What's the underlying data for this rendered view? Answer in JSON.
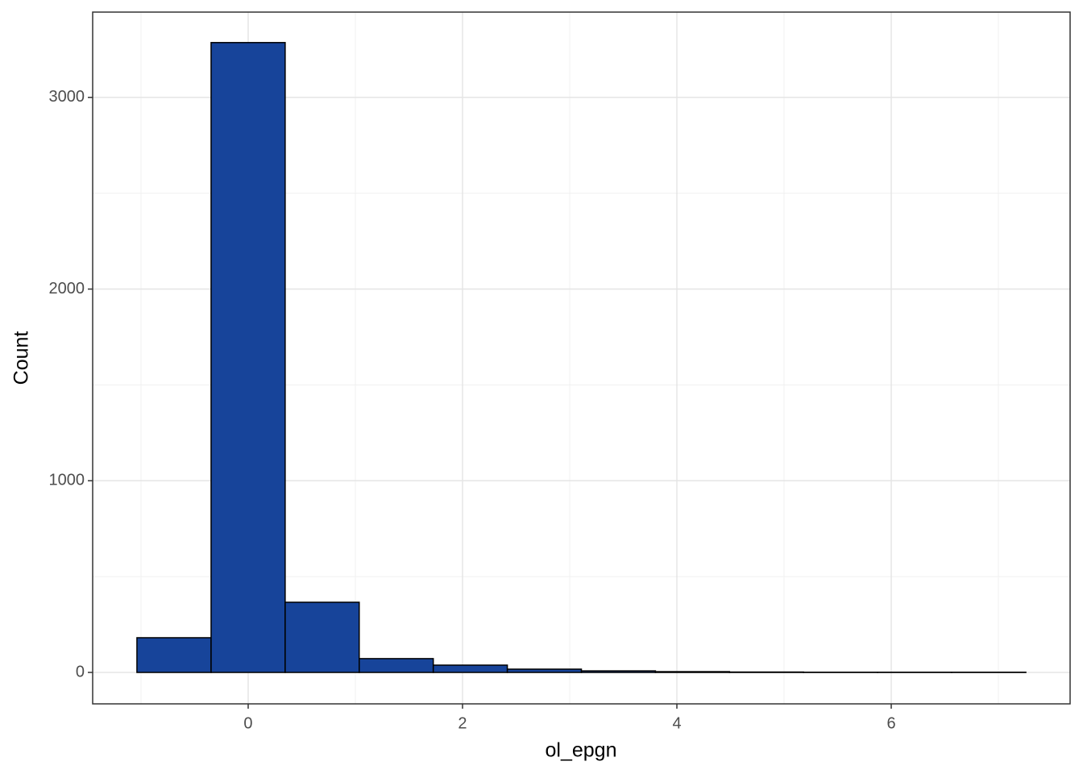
{
  "chart_data": {
    "type": "histogram",
    "x_label": "ol_epgn",
    "y_label": "Count",
    "bins": [
      -1.038,
      -0.346,
      0.345,
      1.036,
      1.727,
      2.418,
      3.109,
      3.8,
      4.491,
      5.182,
      5.873,
      6.564,
      7.256
    ],
    "values": [
      181,
      3286,
      366,
      72,
      38,
      17,
      8,
      4,
      2,
      1,
      1,
      1
    ],
    "color": "#17449a",
    "edge_color": "#000000",
    "xlim": [
      -1.451,
      7.669
    ],
    "ylim": [
      -164,
      3445
    ],
    "xticks": [
      0,
      2,
      4,
      6
    ],
    "yticks": [
      0,
      1000,
      2000,
      3000
    ],
    "x_minor_ticks": [
      -1,
      1,
      3,
      5,
      7
    ],
    "y_minor_ticks": [
      500,
      1500,
      2500
    ],
    "grid": true
  }
}
